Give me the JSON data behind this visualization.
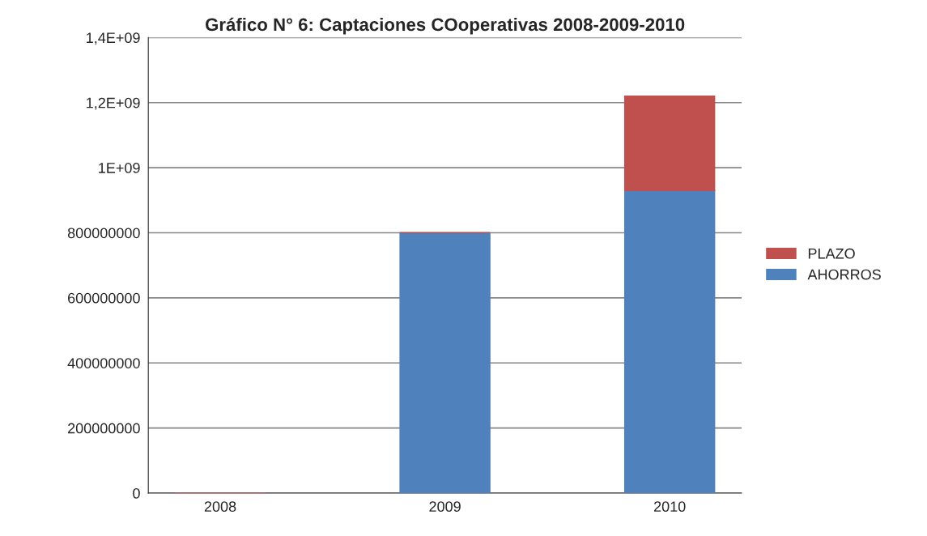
{
  "chart_data": {
    "type": "bar",
    "title": "Gráfico N° 6: Captaciones COoperativas 2008-2009-2010",
    "categories": [
      "2008",
      "2009",
      "2010"
    ],
    "stacked": true,
    "series": [
      {
        "name": "AHORROS",
        "color": "#4f81bd",
        "values": [
          0,
          800000000,
          930000000
        ]
      },
      {
        "name": "PLAZO",
        "color": "#c0504d",
        "values": [
          0,
          0,
          290000000
        ]
      }
    ],
    "ylim": [
      0,
      1400000000
    ],
    "yticks": [
      0,
      200000000,
      400000000,
      600000000,
      800000000,
      {
        "value": 1000000000,
        "label": "1E+09"
      },
      {
        "value": 1200000000,
        "label": "1,2E+09"
      },
      {
        "value": 1400000000,
        "label": "1,4E+09"
      }
    ],
    "grid": "y",
    "legend": "right"
  }
}
